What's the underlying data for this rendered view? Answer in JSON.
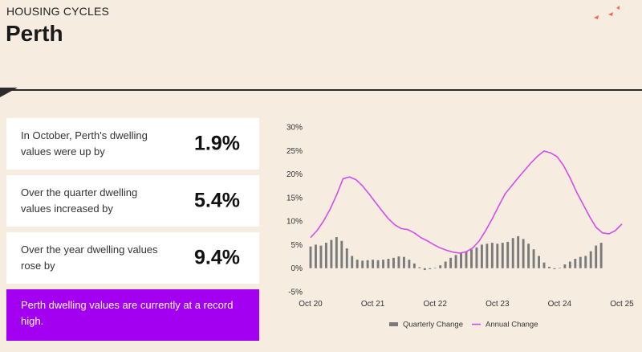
{
  "header": {
    "eyebrow": "HOUSING CYCLES",
    "title": "Perth"
  },
  "stats": [
    {
      "text": "In October, Perth's dwelling values were up by",
      "value": "1.9%"
    },
    {
      "text": "Over the quarter dwelling values increased by",
      "value": "5.4%"
    },
    {
      "text": "Over the year dwelling values rose by",
      "value": "9.4%"
    }
  ],
  "highlight": "Perth dwelling values are currently at a record high.",
  "colors": {
    "accent": "#a300f2",
    "bar": "#7a7a7a",
    "line": "#d44de8",
    "background": "#f6ece0"
  },
  "chart_data": {
    "type": "bar+line",
    "title": "",
    "xlabel": "",
    "ylabel": "",
    "ylim": [
      -5,
      30
    ],
    "y_ticks": [
      -5,
      0,
      5,
      10,
      15,
      20,
      25,
      30
    ],
    "y_tick_labels": [
      "-5%",
      "0%",
      "5%",
      "10%",
      "15%",
      "20%",
      "25%",
      "30%"
    ],
    "x_tick_labels": [
      "Oct 20",
      "Oct 21",
      "Oct 22",
      "Oct 23",
      "Oct 24",
      "Oct 25"
    ],
    "x_tick_month_index": [
      0,
      12,
      24,
      36,
      48,
      60
    ],
    "legend": [
      "Quarterly Change",
      "Annual Change"
    ],
    "legend_position": "bottom",
    "series": [
      {
        "name": "Quarterly Change",
        "kind": "bar",
        "values": [
          4.6,
          5.0,
          4.8,
          5.4,
          6.0,
          6.6,
          5.8,
          4.2,
          2.6,
          1.8,
          1.6,
          1.7,
          1.8,
          1.7,
          1.8,
          2.0,
          2.2,
          2.5,
          2.4,
          1.8,
          1.0,
          0.2,
          -0.4,
          -0.2,
          0.1,
          0.6,
          1.4,
          2.2,
          2.8,
          3.2,
          3.6,
          4.0,
          4.4,
          5.0,
          5.2,
          5.4,
          5.2,
          5.4,
          5.6,
          6.4,
          6.8,
          6.2,
          5.2,
          4.0,
          2.6,
          1.2,
          0.3,
          -0.2,
          0.1,
          0.8,
          1.4,
          2.0,
          2.4,
          2.6,
          3.6,
          4.8,
          5.4
        ]
      },
      {
        "name": "Annual Change",
        "kind": "line",
        "values": [
          6.5,
          8.0,
          10.0,
          12.5,
          15.5,
          19.0,
          19.4,
          18.8,
          17.5,
          15.8,
          14.0,
          12.2,
          10.5,
          9.2,
          8.4,
          8.2,
          7.5,
          6.5,
          5.8,
          5.0,
          4.3,
          3.8,
          3.4,
          3.2,
          3.5,
          4.3,
          5.8,
          8.0,
          10.5,
          13.2,
          15.8,
          17.5,
          19.2,
          20.8,
          22.4,
          23.8,
          24.9,
          24.5,
          23.7,
          21.8,
          19.2,
          16.2,
          13.6,
          11.0,
          8.7,
          7.5,
          7.3,
          8.0,
          9.4
        ]
      }
    ]
  }
}
